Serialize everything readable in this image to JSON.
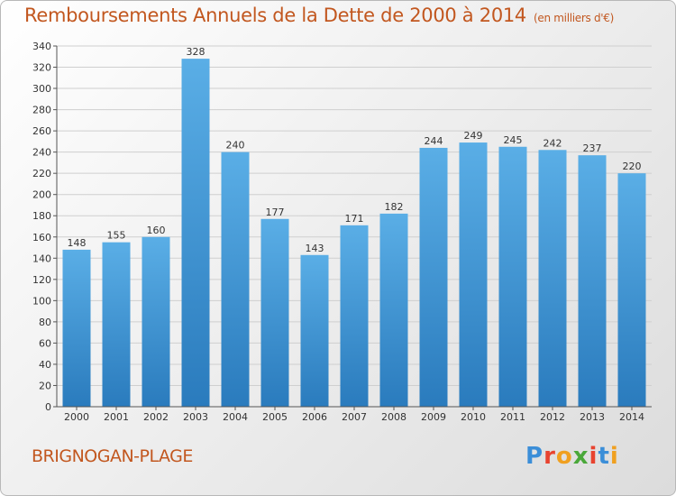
{
  "header": {
    "title": "Remboursements Annuels de la Dette de 2000 à 2014",
    "unit": "(en milliers d'€)"
  },
  "footer": {
    "city": "BRIGNOGAN-PLAGE",
    "logo": "Proxiti"
  },
  "colors": {
    "accent": "#c2571f",
    "bar_light": "#5aaee6",
    "bar_dark": "#2a7bbd"
  },
  "chart_data": {
    "type": "bar",
    "title": "Remboursements Annuels de la Dette de 2000 à 2014",
    "subtitle": "(en milliers d'€)",
    "xlabel": "",
    "ylabel": "",
    "ylim": [
      0,
      340
    ],
    "ytick_step": 20,
    "grid": true,
    "categories": [
      "2000",
      "2001",
      "2002",
      "2003",
      "2004",
      "2005",
      "2006",
      "2007",
      "2008",
      "2009",
      "2010",
      "2011",
      "2012",
      "2013",
      "2014"
    ],
    "values": [
      148,
      155,
      160,
      328,
      240,
      177,
      143,
      171,
      182,
      244,
      249,
      245,
      242,
      237,
      220
    ]
  }
}
